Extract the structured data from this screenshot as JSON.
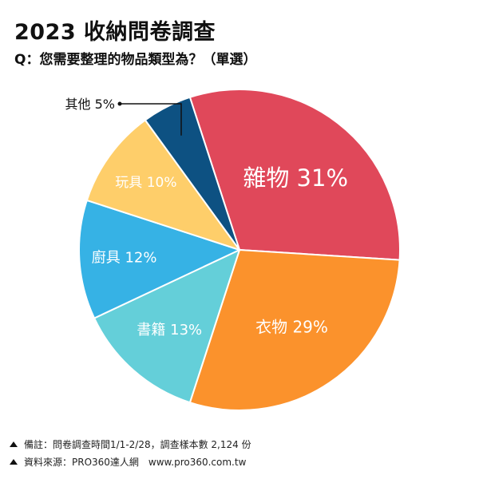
{
  "header": {
    "title": "2023 收納問卷調查",
    "subtitle": "Q：您需要整理的物品類型為？（單選）"
  },
  "chart_data": {
    "type": "pie",
    "title": "2023 收納問卷調查",
    "subtitle": "Q：您需要整理的物品類型為？（單選）",
    "slices": [
      {
        "name": "雜物",
        "value": 31,
        "label": "雜物 31%",
        "color": "#e0485a"
      },
      {
        "name": "衣物",
        "value": 29,
        "label": "衣物 29%",
        "color": "#fb922c"
      },
      {
        "name": "書籍",
        "value": 13,
        "label": "書籍 13%",
        "color": "#64cfd9"
      },
      {
        "name": "廚具",
        "value": 12,
        "label": "廚具 12%",
        "color": "#36b2e5"
      },
      {
        "name": "玩具",
        "value": 10,
        "label": "玩具 10%",
        "color": "#fece6a"
      },
      {
        "name": "其他",
        "value": 5,
        "label": "其他 5%",
        "color": "#0d5182"
      }
    ]
  },
  "footer": {
    "note": "備註：問卷調查時間1/1-2/28，調查樣本數 2,124 份",
    "source": "資料來源：PRO360達人網　www.pro360.com.tw"
  }
}
